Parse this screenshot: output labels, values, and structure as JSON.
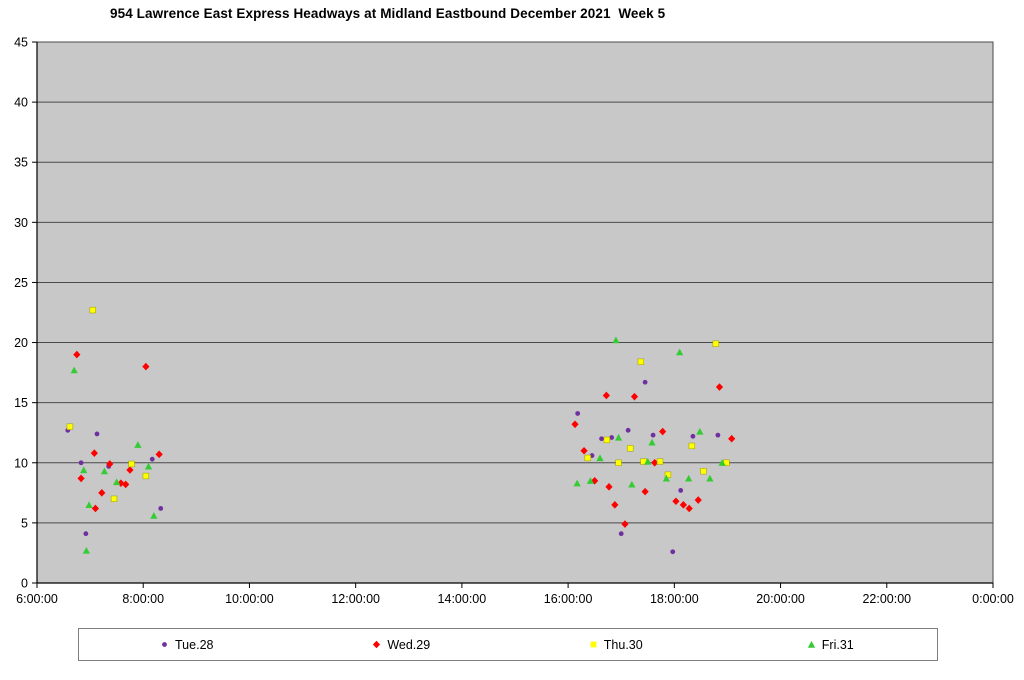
{
  "chart": {
    "title": "954 Lawrence East Express Headways at Midland Eastbound December 2021  Week 5"
  },
  "chart_data": {
    "type": "scatter",
    "title": "954 Lawrence East Express Headways at Midland Eastbound December 2021  Week 5",
    "xlabel": "",
    "ylabel": "",
    "grid": true,
    "legend_position": "bottom",
    "plot_bg_color": "#c8c8c8",
    "grid_color": "#4a4a4a",
    "axis_color": "#000000",
    "x_axis": {
      "min_hours": 6,
      "max_hours": 24,
      "tick_hours": [
        6,
        8,
        10,
        12,
        14,
        16,
        18,
        20,
        22,
        24
      ],
      "tick_labels": [
        "6:00:00",
        "8:00:00",
        "10:00:00",
        "12:00:00",
        "14:00:00",
        "16:00:00",
        "18:00:00",
        "20:00:00",
        "22:00:00",
        "0:00:00"
      ]
    },
    "y_axis": {
      "min": 0,
      "max": 45,
      "tick_values": [
        0,
        5,
        10,
        15,
        20,
        25,
        30,
        35,
        40,
        45
      ],
      "tick_labels": [
        "0",
        "5",
        "10",
        "15",
        "20",
        "25",
        "30",
        "35",
        "40",
        "45"
      ]
    },
    "series": [
      {
        "name": "Tue.28",
        "marker": "circle",
        "color": "#7030a0",
        "points": [
          [
            6.58,
            12.7
          ],
          [
            6.83,
            10.0
          ],
          [
            6.92,
            4.1
          ],
          [
            7.13,
            12.4
          ],
          [
            7.35,
            9.7
          ],
          [
            8.17,
            10.3
          ],
          [
            8.33,
            6.2
          ],
          [
            16.18,
            14.1
          ],
          [
            16.45,
            10.6
          ],
          [
            16.63,
            12.0
          ],
          [
            16.82,
            12.1
          ],
          [
            17.0,
            4.1
          ],
          [
            17.13,
            12.7
          ],
          [
            17.45,
            16.7
          ],
          [
            17.6,
            12.3
          ],
          [
            17.97,
            2.6
          ],
          [
            18.12,
            7.7
          ],
          [
            18.35,
            12.2
          ],
          [
            18.82,
            12.3
          ]
        ]
      },
      {
        "name": "Wed.29",
        "marker": "diamond",
        "color": "#ff0000",
        "points": [
          [
            6.75,
            19.0
          ],
          [
            6.83,
            8.7
          ],
          [
            7.08,
            10.8
          ],
          [
            7.1,
            6.2
          ],
          [
            7.22,
            7.5
          ],
          [
            7.37,
            9.9
          ],
          [
            7.58,
            8.3
          ],
          [
            7.67,
            8.2
          ],
          [
            7.75,
            9.4
          ],
          [
            8.05,
            18.0
          ],
          [
            8.3,
            10.7
          ],
          [
            16.13,
            13.2
          ],
          [
            16.3,
            11.0
          ],
          [
            16.5,
            8.5
          ],
          [
            16.72,
            15.6
          ],
          [
            16.77,
            8.0
          ],
          [
            16.88,
            6.5
          ],
          [
            17.07,
            4.9
          ],
          [
            17.25,
            15.5
          ],
          [
            17.45,
            7.6
          ],
          [
            17.63,
            10.0
          ],
          [
            17.78,
            12.6
          ],
          [
            18.03,
            6.8
          ],
          [
            18.17,
            6.5
          ],
          [
            18.28,
            6.2
          ],
          [
            18.45,
            6.9
          ],
          [
            18.85,
            16.3
          ],
          [
            19.08,
            12.0
          ]
        ]
      },
      {
        "name": "Thu.30",
        "marker": "square",
        "color": "#ffff00",
        "points": [
          [
            6.62,
            13.0
          ],
          [
            7.05,
            22.7
          ],
          [
            7.45,
            7.0
          ],
          [
            7.78,
            9.9
          ],
          [
            8.05,
            8.9
          ],
          [
            16.37,
            10.4
          ],
          [
            16.73,
            11.9
          ],
          [
            16.95,
            10.0
          ],
          [
            17.17,
            11.2
          ],
          [
            17.37,
            18.4
          ],
          [
            17.42,
            10.1
          ],
          [
            17.73,
            10.1
          ],
          [
            17.88,
            9.0
          ],
          [
            18.33,
            11.4
          ],
          [
            18.55,
            9.3
          ],
          [
            18.78,
            19.9
          ],
          [
            18.98,
            10.0
          ]
        ]
      },
      {
        "name": "Fri.31",
        "marker": "triangle",
        "color": "#33cc33",
        "points": [
          [
            6.7,
            17.7
          ],
          [
            6.88,
            9.4
          ],
          [
            6.93,
            2.7
          ],
          [
            6.98,
            6.5
          ],
          [
            7.27,
            9.3
          ],
          [
            7.5,
            8.4
          ],
          [
            7.9,
            11.5
          ],
          [
            8.1,
            9.7
          ],
          [
            8.2,
            5.6
          ],
          [
            16.17,
            8.3
          ],
          [
            16.42,
            8.5
          ],
          [
            16.6,
            10.4
          ],
          [
            16.9,
            20.2
          ],
          [
            16.95,
            12.1
          ],
          [
            17.2,
            8.2
          ],
          [
            17.5,
            10.1
          ],
          [
            17.58,
            11.7
          ],
          [
            17.85,
            8.7
          ],
          [
            18.1,
            19.2
          ],
          [
            18.27,
            8.7
          ],
          [
            18.48,
            12.6
          ],
          [
            18.67,
            8.7
          ],
          [
            18.9,
            10.0
          ]
        ]
      }
    ]
  }
}
